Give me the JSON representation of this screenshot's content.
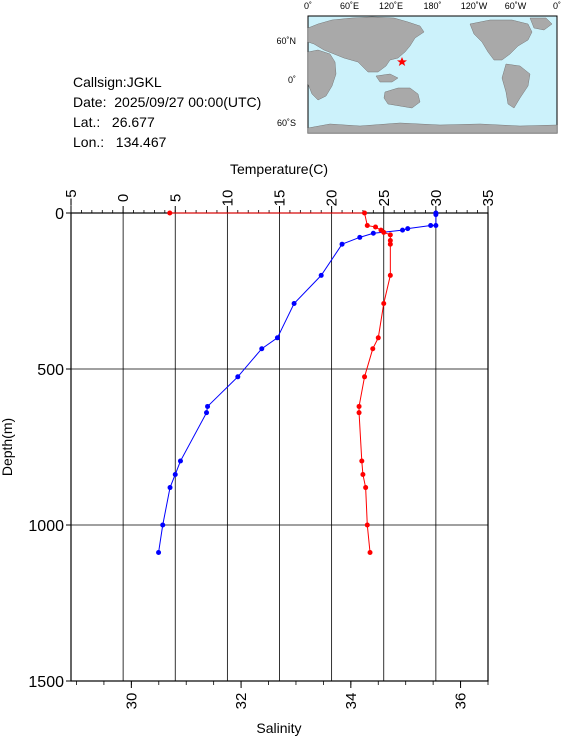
{
  "info": {
    "callsign": "Callsign:JGKL",
    "date": "Date:  2025/09/27 00:00(UTC)",
    "lat": "Lat.:   26.677",
    "lon": "Lon.:   134.467"
  },
  "map": {
    "top_ticks": [
      "0˚",
      "60˚E",
      "120˚E",
      "180˚",
      "120˚W",
      "60˚W",
      "0˚"
    ],
    "lat_ticks": [
      "60˚N",
      "0˚",
      "60˚S"
    ],
    "marker": "red-star",
    "colors": {
      "ocean": "#ccf2fb",
      "land": "#a9a9a9"
    }
  },
  "chart_data": {
    "type": "line",
    "x_top": {
      "label": "Temperature(C)",
      "lim": [
        -5,
        35
      ],
      "ticks": [
        -5,
        0,
        5,
        10,
        15,
        20,
        25,
        30,
        35
      ]
    },
    "x_bottom": {
      "label": "Salinity",
      "lim": [
        28.9,
        36.5
      ],
      "ticks": [
        30,
        32,
        34,
        36
      ]
    },
    "y": {
      "label": "Depth(m)",
      "lim": [
        0,
        1500
      ],
      "ticks": [
        0,
        500,
        1000,
        1500
      ],
      "inverted": true
    },
    "grid": true,
    "series": [
      {
        "axis": "temperature",
        "color": "#0000ff",
        "points": [
          [
            30.0,
            0
          ],
          [
            30.0,
            5
          ],
          [
            30.0,
            40
          ],
          [
            29.5,
            40
          ],
          [
            27.3,
            50
          ],
          [
            26.8,
            55
          ],
          [
            24.0,
            65
          ],
          [
            22.7,
            78
          ],
          [
            21.0,
            100
          ],
          [
            19.0,
            200
          ],
          [
            16.4,
            290
          ],
          [
            14.8,
            400
          ],
          [
            13.3,
            435
          ],
          [
            11.0,
            525
          ],
          [
            8.1,
            620
          ],
          [
            8.0,
            640
          ],
          [
            5.5,
            795
          ],
          [
            5.0,
            838
          ],
          [
            4.5,
            880
          ],
          [
            3.8,
            1000
          ],
          [
            3.4,
            1088
          ]
        ]
      },
      {
        "axis": "salinity",
        "color": "#ff0000",
        "points": [
          [
            30.7,
            0
          ],
          [
            34.25,
            0
          ],
          [
            34.3,
            40
          ],
          [
            34.45,
            45
          ],
          [
            34.55,
            55
          ],
          [
            34.6,
            62
          ],
          [
            34.72,
            70
          ],
          [
            34.72,
            88
          ],
          [
            34.72,
            100
          ],
          [
            34.72,
            200
          ],
          [
            34.6,
            290
          ],
          [
            34.5,
            400
          ],
          [
            34.4,
            435
          ],
          [
            34.25,
            525
          ],
          [
            34.15,
            620
          ],
          [
            34.15,
            640
          ],
          [
            34.2,
            795
          ],
          [
            34.22,
            838
          ],
          [
            34.27,
            880
          ],
          [
            34.3,
            1000
          ],
          [
            34.35,
            1088
          ]
        ]
      }
    ]
  }
}
